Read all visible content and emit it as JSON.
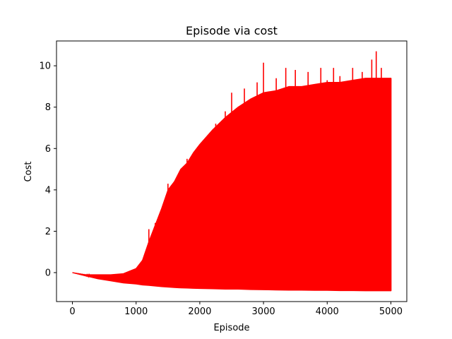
{
  "chart_data": {
    "type": "line",
    "title": "Episode via cost",
    "xlabel": "Episode",
    "ylabel": "Cost",
    "xlim": [
      -250,
      5250
    ],
    "ylim": [
      -1.4,
      11.2
    ],
    "xticks": [
      0,
      1000,
      2000,
      3000,
      4000,
      5000
    ],
    "yticks": [
      0,
      2,
      4,
      6,
      8,
      10
    ],
    "xtick_labels": [
      "0",
      "1000",
      "2000",
      "3000",
      "4000",
      "5000"
    ],
    "ytick_labels": [
      "0",
      "2",
      "4",
      "6",
      "8",
      "10"
    ],
    "grid": false,
    "legend": "none",
    "series": [
      {
        "color": "#ff0000",
        "x": [
          0,
          200,
          400,
          600,
          800,
          1000,
          1100,
          1200,
          1300,
          1400,
          1500,
          1600,
          1700,
          1800,
          1900,
          2000,
          2200,
          2400,
          2600,
          2800,
          3000,
          3200,
          3400,
          3600,
          3800,
          4000,
          4200,
          4400,
          4600,
          4800,
          5000
        ],
        "upper": [
          0.0,
          -0.1,
          -0.1,
          -0.1,
          -0.05,
          0.2,
          0.6,
          1.5,
          2.3,
          3.1,
          4.0,
          4.4,
          5.0,
          5.3,
          5.8,
          6.2,
          6.9,
          7.5,
          8.0,
          8.4,
          8.7,
          8.8,
          9.0,
          9.0,
          9.1,
          9.2,
          9.2,
          9.3,
          9.4,
          9.4,
          9.4
        ],
        "lower": [
          0.0,
          -0.15,
          -0.3,
          -0.4,
          -0.5,
          -0.55,
          -0.6,
          -0.62,
          -0.65,
          -0.68,
          -0.7,
          -0.72,
          -0.74,
          -0.75,
          -0.76,
          -0.77,
          -0.78,
          -0.8,
          -0.8,
          -0.82,
          -0.83,
          -0.84,
          -0.85,
          -0.85,
          -0.86,
          -0.86,
          -0.87,
          -0.87,
          -0.88,
          -0.88,
          -0.88
        ],
        "spikes": [
          [
            1200,
            2.1
          ],
          [
            1300,
            2.4
          ],
          [
            1500,
            4.3
          ],
          [
            1620,
            4.4
          ],
          [
            1800,
            5.5
          ],
          [
            2000,
            5.3
          ],
          [
            2100,
            6.5
          ],
          [
            2250,
            7.2
          ],
          [
            2300,
            6.8
          ],
          [
            2400,
            7.8
          ],
          [
            2500,
            8.7
          ],
          [
            2700,
            8.9
          ],
          [
            2900,
            9.2
          ],
          [
            3000,
            10.15
          ],
          [
            3200,
            9.4
          ],
          [
            3350,
            9.9
          ],
          [
            3500,
            9.8
          ],
          [
            3700,
            9.7
          ],
          [
            3900,
            9.9
          ],
          [
            4000,
            9.3
          ],
          [
            4100,
            9.9
          ],
          [
            4200,
            9.5
          ],
          [
            4400,
            9.9
          ],
          [
            4550,
            9.7
          ],
          [
            4700,
            10.3
          ],
          [
            4770,
            10.7
          ],
          [
            4850,
            9.9
          ],
          [
            5000,
            9.4
          ]
        ]
      }
    ]
  }
}
